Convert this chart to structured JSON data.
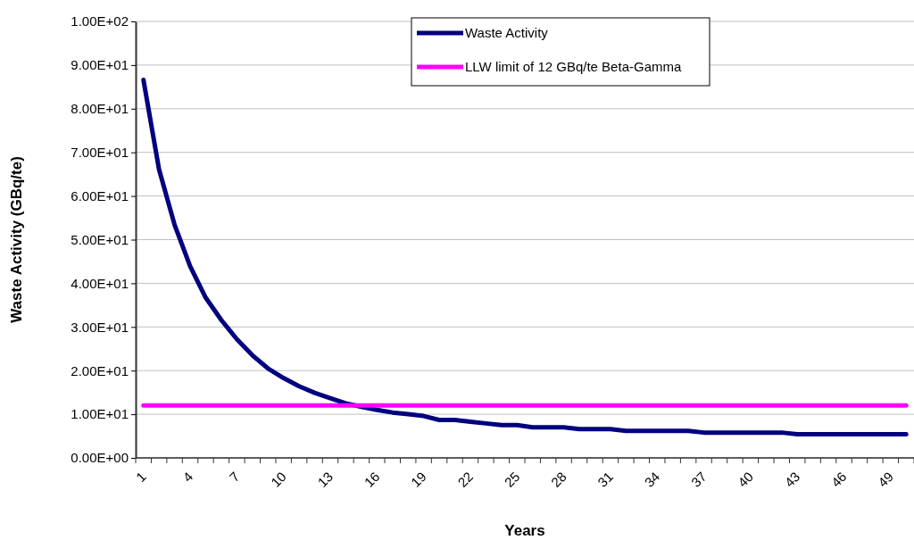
{
  "chart_data": {
    "type": "line",
    "xlabel": "Years",
    "ylabel": "Waste Activity (GBq/te)",
    "categories": [
      "1",
      null,
      null,
      "4",
      null,
      null,
      "7",
      null,
      null,
      "10",
      null,
      null,
      "13",
      null,
      null,
      "16",
      null,
      null,
      "19",
      null,
      null,
      "22",
      null,
      null,
      "25",
      null,
      null,
      "28",
      null,
      null,
      "31",
      null,
      null,
      "34",
      null,
      null,
      "37",
      null,
      null,
      "40",
      null,
      null,
      "43",
      null,
      null,
      "46",
      null,
      null,
      "49",
      null
    ],
    "series": [
      {
        "name": "Waste Activity",
        "color": "#000080",
        "values": [
          86.6,
          66.1,
          53.4,
          43.9,
          36.7,
          31.6,
          27.2,
          23.5,
          20.5,
          18.3,
          16.4,
          14.9,
          13.7,
          12.5,
          11.7,
          11.0,
          10.4,
          10.0,
          9.6,
          8.7,
          8.7,
          8.3,
          7.9,
          7.5,
          7.5,
          7.0,
          7.0,
          7.0,
          6.6,
          6.6,
          6.6,
          6.2,
          6.2,
          6.2,
          6.2,
          6.2,
          5.8,
          5.8,
          5.8,
          5.8,
          5.8,
          5.8,
          5.4,
          5.4,
          5.4,
          5.4,
          5.4,
          5.4,
          5.4,
          5.4
        ]
      },
      {
        "name": "LLW limit of 12 GBq/te Beta-Gamma",
        "color": "#ff00ff",
        "values": [
          12,
          12,
          12,
          12,
          12,
          12,
          12,
          12,
          12,
          12,
          12,
          12,
          12,
          12,
          12,
          12,
          12,
          12,
          12,
          12,
          12,
          12,
          12,
          12,
          12,
          12,
          12,
          12,
          12,
          12,
          12,
          12,
          12,
          12,
          12,
          12,
          12,
          12,
          12,
          12,
          12,
          12,
          12,
          12,
          12,
          12,
          12,
          12,
          12,
          12
        ]
      }
    ],
    "ylim": [
      0,
      100
    ],
    "yticks": [
      {
        "value": 0,
        "label": "0.00E+00"
      },
      {
        "value": 10,
        "label": "1.00E+01"
      },
      {
        "value": 20,
        "label": "2.00E+01"
      },
      {
        "value": 30,
        "label": "3.00E+01"
      },
      {
        "value": 40,
        "label": "4.00E+01"
      },
      {
        "value": 50,
        "label": "5.00E+01"
      },
      {
        "value": 60,
        "label": "6.00E+01"
      },
      {
        "value": 70,
        "label": "7.00E+01"
      },
      {
        "value": 80,
        "label": "8.00E+01"
      },
      {
        "value": 90,
        "label": "9.00E+01"
      },
      {
        "value": 100,
        "label": "1.00E+02"
      }
    ],
    "grid": "y",
    "legend": "top",
    "marker": "none",
    "line_style": "solid"
  }
}
